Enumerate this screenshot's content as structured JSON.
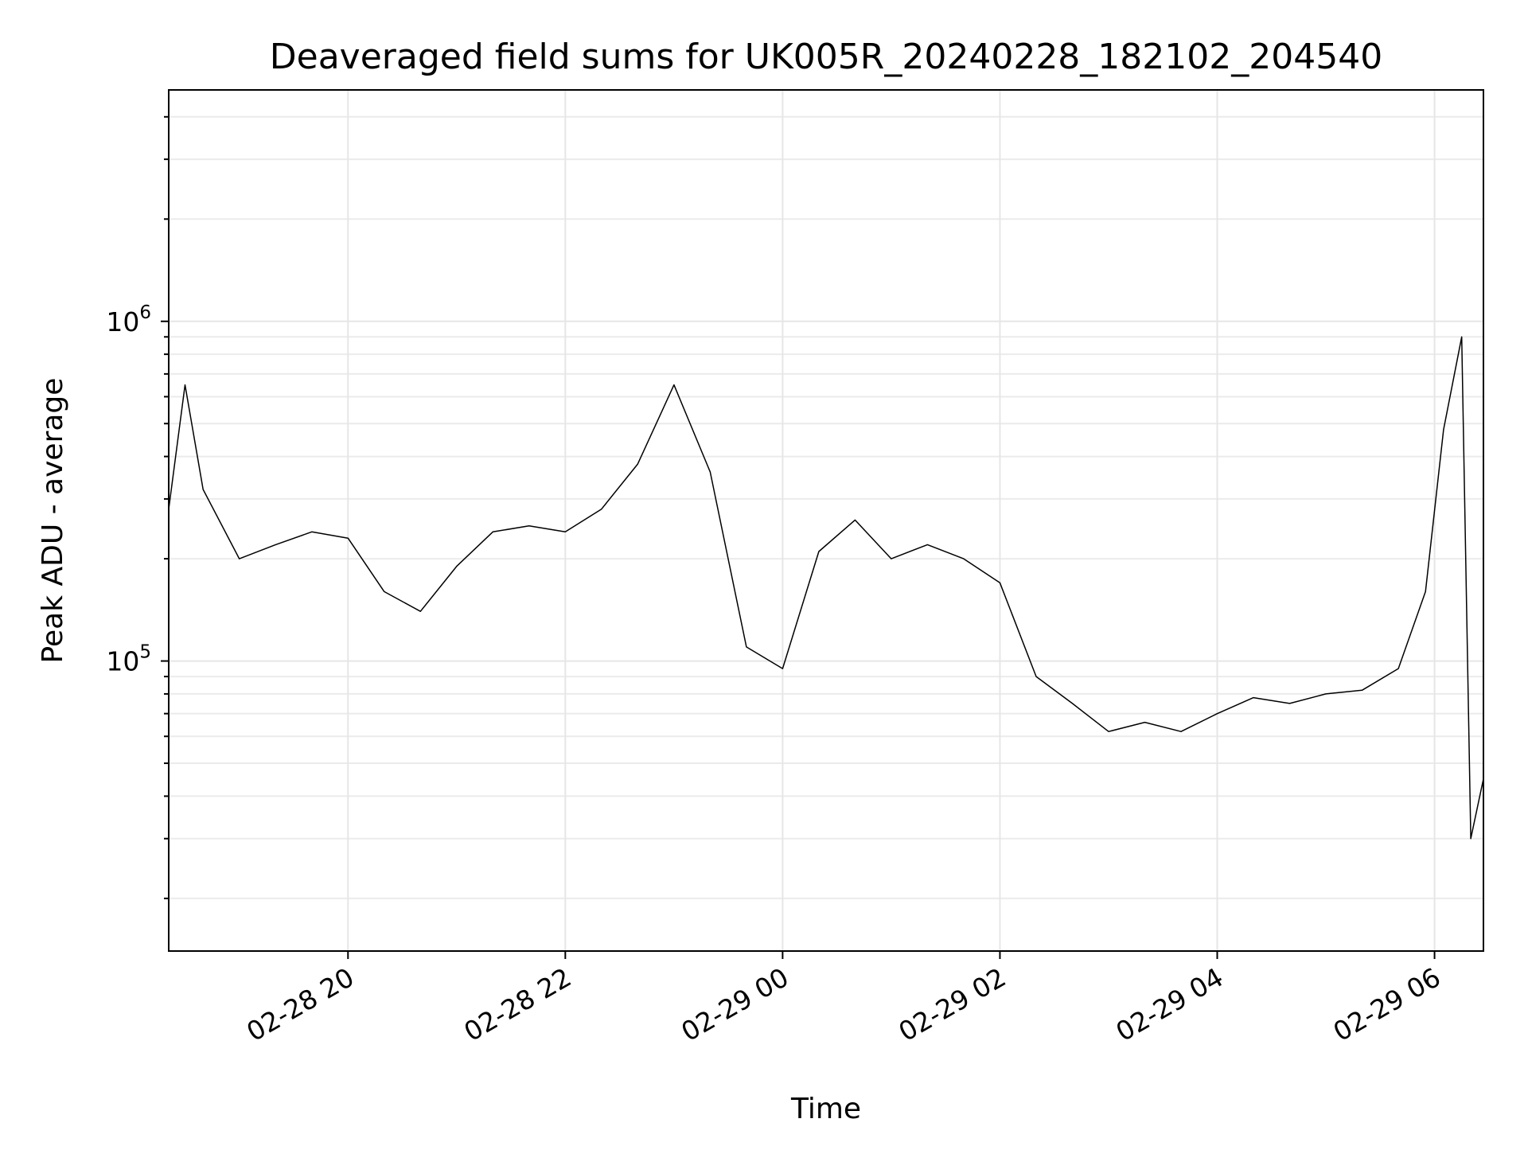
{
  "chart_data": {
    "type": "line",
    "title": "Deaveraged field sums for UK005R_20240228_182102_204540",
    "xlabel": "Time",
    "ylabel": "Peak ADU - average",
    "y_scale": "log",
    "ylim": [
      14000,
      4800000
    ],
    "xlim": [
      "2024-02-28 18:21",
      "2024-02-29 06:27"
    ],
    "grid": true,
    "line_color": "#000000",
    "x_ticks": [
      {
        "t": "2024-02-28 20:00",
        "label": "02-28 20"
      },
      {
        "t": "2024-02-28 22:00",
        "label": "02-28 22"
      },
      {
        "t": "2024-02-29 00:00",
        "label": "02-29 00"
      },
      {
        "t": "2024-02-29 02:00",
        "label": "02-29 02"
      },
      {
        "t": "2024-02-29 04:00",
        "label": "02-29 04"
      },
      {
        "t": "2024-02-29 06:00",
        "label": "02-29 06"
      }
    ],
    "y_ticks": [
      {
        "value": 100000,
        "base": "10",
        "exp": "5"
      },
      {
        "value": 1000000,
        "base": "10",
        "exp": "6"
      }
    ],
    "series": [
      {
        "x": [
          "2024-02-28 18:21",
          "2024-02-28 18:30",
          "2024-02-28 18:40",
          "2024-02-28 19:00",
          "2024-02-28 19:20",
          "2024-02-28 19:40",
          "2024-02-28 20:00",
          "2024-02-28 20:20",
          "2024-02-28 20:40",
          "2024-02-28 21:00",
          "2024-02-28 21:20",
          "2024-02-28 21:40",
          "2024-02-28 22:00",
          "2024-02-28 22:20",
          "2024-02-28 22:40",
          "2024-02-28 23:00",
          "2024-02-28 23:20",
          "2024-02-28 23:40",
          "2024-02-29 00:00",
          "2024-02-29 00:20",
          "2024-02-29 00:40",
          "2024-02-29 01:00",
          "2024-02-29 01:20",
          "2024-02-29 01:40",
          "2024-02-29 02:00",
          "2024-02-29 02:20",
          "2024-02-29 02:40",
          "2024-02-29 03:00",
          "2024-02-29 03:20",
          "2024-02-29 03:40",
          "2024-02-29 04:00",
          "2024-02-29 04:20",
          "2024-02-29 04:40",
          "2024-02-29 05:00",
          "2024-02-29 05:20",
          "2024-02-29 05:40",
          "2024-02-29 05:55",
          "2024-02-29 06:05",
          "2024-02-29 06:15",
          "2024-02-29 06:20",
          "2024-02-29 06:27"
        ],
        "y": [
          280000,
          650000,
          320000,
          200000,
          220000,
          240000,
          230000,
          160000,
          140000,
          190000,
          240000,
          250000,
          240000,
          280000,
          380000,
          650000,
          360000,
          110000,
          95000,
          210000,
          260000,
          200000,
          220000,
          200000,
          170000,
          90000,
          75000,
          62000,
          66000,
          62000,
          70000,
          78000,
          75000,
          80000,
          82000,
          95000,
          160000,
          480000,
          900000,
          30000,
          45000
        ]
      }
    ]
  }
}
